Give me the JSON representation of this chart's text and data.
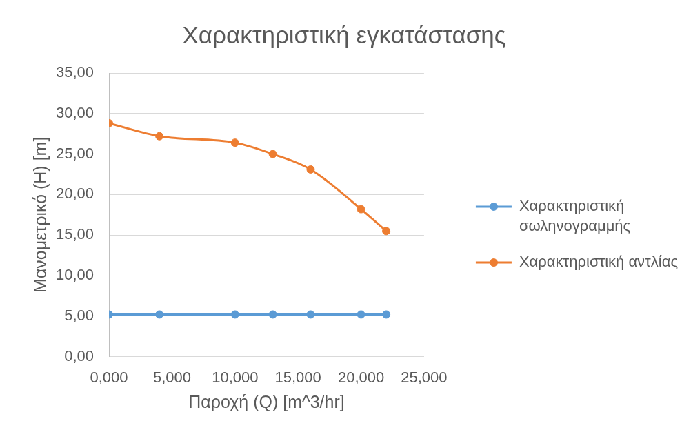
{
  "chart_data": {
    "type": "line",
    "title": "Χαρακτηριστική εγκατάστασης",
    "xlabel": "Παροχή (Q) [m^3/hr]",
    "ylabel": "Μανομετρικό (H) [m]",
    "x": [
      0,
      4,
      10,
      13,
      16,
      20,
      22
    ],
    "series": [
      {
        "name": "Χαρακτηριστική σωληνογραμμής",
        "color": "#5b9bd5",
        "values": [
          5.2,
          5.2,
          5.2,
          5.2,
          5.2,
          5.2,
          5.2
        ]
      },
      {
        "name": "Χαρακτηριστική αντλίας",
        "color": "#ed7d31",
        "values": [
          28.8,
          27.2,
          26.4,
          25.0,
          23.1,
          18.2,
          15.5
        ]
      }
    ],
    "xlim": [
      0,
      25
    ],
    "xticks": [
      {
        "value": 0,
        "label": "0,000"
      },
      {
        "value": 5,
        "label": "5,000"
      },
      {
        "value": 10,
        "label": "10,000"
      },
      {
        "value": 15,
        "label": "15,000"
      },
      {
        "value": 20,
        "label": "20,000"
      },
      {
        "value": 25,
        "label": "25,000"
      }
    ],
    "ylim": [
      0,
      35
    ],
    "yticks": [
      {
        "value": 0,
        "label": "0,00"
      },
      {
        "value": 5,
        "label": "5,00"
      },
      {
        "value": 10,
        "label": "10,00"
      },
      {
        "value": 15,
        "label": "15,00"
      },
      {
        "value": 20,
        "label": "20,00"
      },
      {
        "value": 25,
        "label": "25,00"
      },
      {
        "value": 30,
        "label": "30,00"
      },
      {
        "value": 35,
        "label": "35,00"
      }
    ],
    "grid": "y",
    "legend": "right",
    "marker": "circle",
    "line_style": "solid"
  }
}
